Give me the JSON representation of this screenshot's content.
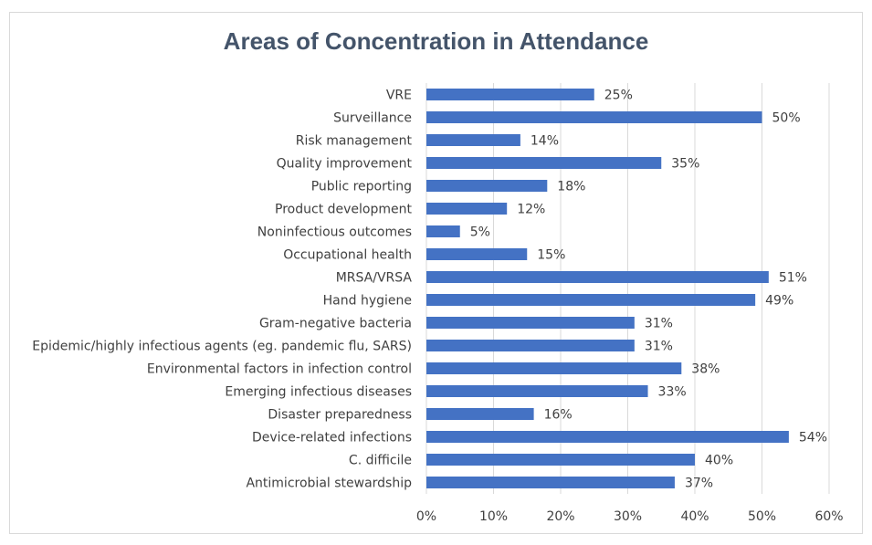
{
  "chart_data": {
    "type": "bar",
    "orientation": "horizontal",
    "title": "Areas of Concentration in Attendance",
    "xlabel": "",
    "ylabel": "",
    "xlim": [
      0,
      60
    ],
    "x_ticks": [
      "0%",
      "10%",
      "20%",
      "30%",
      "40%",
      "50%",
      "60%"
    ],
    "grid": true,
    "legend": "none",
    "bar_color": "#4472c4",
    "categories": [
      "VRE",
      "Surveillance",
      "Risk management",
      "Quality improvement",
      "Public reporting",
      "Product development",
      "Noninfectious outcomes",
      "Occupational health",
      "MRSA/VRSA",
      "Hand hygiene",
      "Gram-negative bacteria",
      "Epidemic/highly infectious agents (eg. pandemic flu, SARS)",
      "Environmental factors in infection control",
      "Emerging infectious diseases",
      "Disaster preparedness",
      "Device-related infections",
      "C. difficile",
      "Antimicrobial stewardship"
    ],
    "values": [
      25,
      50,
      14,
      35,
      18,
      12,
      5,
      15,
      51,
      49,
      31,
      31,
      38,
      33,
      16,
      54,
      40,
      37
    ],
    "data_labels": [
      "25%",
      "50%",
      "14%",
      "35%",
      "18%",
      "12%",
      "5%",
      "15%",
      "51%",
      "49%",
      "31%",
      "31%",
      "38%",
      "33%",
      "16%",
      "54%",
      "40%",
      "37%"
    ]
  }
}
